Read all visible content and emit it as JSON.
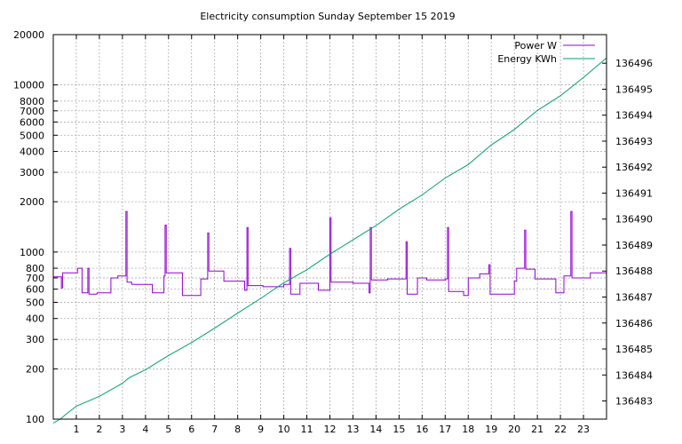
{
  "chart_data": {
    "type": "line",
    "title": "Electricity consumption Sunday September 15 2019",
    "xlabel": "",
    "ylabel": "",
    "y2label": "",
    "xlim": [
      0,
      24
    ],
    "ylim": [
      100,
      20000
    ],
    "yscale": "log",
    "y2lim": [
      136482.3,
      136497.1
    ],
    "grid": true,
    "legend_position": "top-right",
    "x_ticks": [
      1,
      2,
      3,
      4,
      5,
      6,
      7,
      8,
      9,
      10,
      11,
      12,
      13,
      14,
      15,
      16,
      17,
      18,
      19,
      20,
      21,
      22,
      23
    ],
    "y_ticks": [
      {
        "v": 100,
        "t": "100"
      },
      {
        "v": 200,
        "t": "200"
      },
      {
        "v": 300,
        "t": "300"
      },
      {
        "v": 400,
        "t": "400"
      },
      {
        "v": 500,
        "t": "500"
      },
      {
        "v": 600,
        "t": "600"
      },
      {
        "v": 700,
        "t": "700"
      },
      {
        "v": 800,
        "t": "800"
      },
      {
        "v": 1000,
        "t": "1000"
      },
      {
        "v": 2000,
        "t": "2000"
      },
      {
        "v": 3000,
        "t": "3000"
      },
      {
        "v": 4000,
        "t": "4000"
      },
      {
        "v": 5000,
        "t": "5000"
      },
      {
        "v": 6000,
        "t": "6000"
      },
      {
        "v": 7000,
        "t": "7000"
      },
      {
        "v": 8000,
        "t": "8000"
      },
      {
        "v": 10000,
        "t": "10000"
      },
      {
        "v": 20000,
        "t": "20000"
      }
    ],
    "y2_ticks": [
      136483,
      136484,
      136485,
      136486,
      136487,
      136488,
      136489,
      136490,
      136491,
      136492,
      136493,
      136494,
      136495,
      136496
    ],
    "series": [
      {
        "name": "Power W",
        "axis": "left",
        "color": "#9400d3",
        "step": true,
        "points": [
          [
            0.0,
            710
          ],
          [
            0.35,
            610
          ],
          [
            0.4,
            750
          ],
          [
            1.05,
            800
          ],
          [
            1.25,
            570
          ],
          [
            1.5,
            800
          ],
          [
            1.55,
            560
          ],
          [
            1.9,
            570
          ],
          [
            2.5,
            700
          ],
          [
            2.8,
            720
          ],
          [
            3.1,
            720
          ],
          [
            3.15,
            1750
          ],
          [
            3.2,
            660
          ],
          [
            3.4,
            640
          ],
          [
            4.3,
            570
          ],
          [
            4.8,
            720
          ],
          [
            4.85,
            1450
          ],
          [
            4.9,
            750
          ],
          [
            5.6,
            550
          ],
          [
            6.4,
            690
          ],
          [
            6.7,
            1300
          ],
          [
            6.75,
            770
          ],
          [
            7.4,
            670
          ],
          [
            8.3,
            590
          ],
          [
            8.4,
            1400
          ],
          [
            8.45,
            630
          ],
          [
            9.1,
            620
          ],
          [
            10.0,
            640
          ],
          [
            10.25,
            1050
          ],
          [
            10.3,
            560
          ],
          [
            10.7,
            650
          ],
          [
            11.5,
            590
          ],
          [
            12.0,
            1600
          ],
          [
            12.05,
            660
          ],
          [
            13.0,
            650
          ],
          [
            13.7,
            570
          ],
          [
            13.75,
            1400
          ],
          [
            13.8,
            680
          ],
          [
            14.5,
            690
          ],
          [
            15.3,
            1150
          ],
          [
            15.35,
            560
          ],
          [
            15.8,
            700
          ],
          [
            16.2,
            680
          ],
          [
            17.0,
            690
          ],
          [
            17.1,
            1400
          ],
          [
            17.15,
            580
          ],
          [
            17.8,
            550
          ],
          [
            18.0,
            700
          ],
          [
            18.5,
            740
          ],
          [
            18.9,
            840
          ],
          [
            18.95,
            560
          ],
          [
            19.7,
            560
          ],
          [
            20.0,
            670
          ],
          [
            20.1,
            800
          ],
          [
            20.45,
            1350
          ],
          [
            20.5,
            790
          ],
          [
            20.9,
            690
          ],
          [
            21.8,
            570
          ],
          [
            22.15,
            720
          ],
          [
            22.45,
            1750
          ],
          [
            22.5,
            700
          ],
          [
            23.3,
            750
          ],
          [
            24.0,
            750
          ]
        ]
      },
      {
        "name": "Energy KWh",
        "axis": "right",
        "color": "#009e73",
        "step": false,
        "points": [
          [
            0.0,
            136482.15
          ],
          [
            0.3,
            136482.3
          ],
          [
            0.5,
            136482.45
          ],
          [
            1.0,
            136482.8
          ],
          [
            2.0,
            136483.18
          ],
          [
            3.0,
            136483.68
          ],
          [
            3.3,
            136483.9
          ],
          [
            4.0,
            136484.2
          ],
          [
            5.0,
            136484.75
          ],
          [
            6.0,
            136485.25
          ],
          [
            7.0,
            136485.8
          ],
          [
            8.0,
            136486.38
          ],
          [
            9.0,
            136486.95
          ],
          [
            10.0,
            136487.55
          ],
          [
            11.0,
            136488.05
          ],
          [
            12.0,
            136488.65
          ],
          [
            13.0,
            136489.2
          ],
          [
            14.0,
            136489.75
          ],
          [
            15.0,
            136490.38
          ],
          [
            16.0,
            136490.93
          ],
          [
            17.0,
            136491.58
          ],
          [
            18.0,
            136492.1
          ],
          [
            19.0,
            136492.85
          ],
          [
            20.0,
            136493.45
          ],
          [
            21.0,
            136494.18
          ],
          [
            22.0,
            136494.75
          ],
          [
            23.0,
            136495.45
          ],
          [
            24.0,
            136496.2
          ]
        ]
      }
    ]
  }
}
